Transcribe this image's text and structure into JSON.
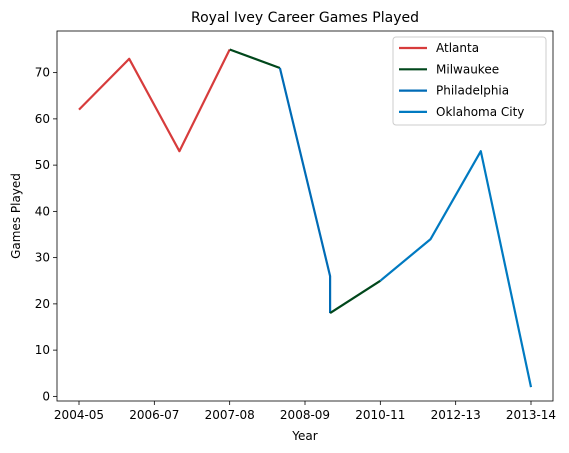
{
  "chart_data": {
    "type": "line",
    "title": "Royal Ivey Career Games Played",
    "xlabel": "Year",
    "ylabel": "Games Played",
    "categories": [
      "2004-05",
      "2005-06",
      "2006-07",
      "2007-08",
      "2008-09",
      "2009-10",
      "2009-10",
      "2010-11",
      "2011-12",
      "2012-13",
      "2013-14"
    ],
    "xtick_labels": [
      "2004-05",
      "2006-07",
      "2007-08",
      "2008-09",
      "2010-11",
      "2012-13",
      "2013-14"
    ],
    "ylim": [
      -1,
      79
    ],
    "yticks": [
      0,
      10,
      20,
      30,
      40,
      50,
      60,
      70
    ],
    "grid": false,
    "legend_position": "top-right",
    "series": [
      {
        "name": "Atlanta",
        "color": "#d73c3c",
        "points": [
          [
            "2004-05",
            62
          ],
          [
            "2005-06",
            73
          ],
          [
            "2006-07",
            53
          ],
          [
            "2007-08",
            75
          ]
        ]
      },
      {
        "name": "Milwaukee",
        "color": "#00471b",
        "points": [
          [
            "2007-08",
            75
          ],
          [
            "2008-09",
            71
          ]
        ]
      },
      {
        "name": "Philadelphia",
        "color": "#006bb6",
        "points": [
          [
            "2008-09",
            71
          ],
          [
            "2009-10",
            26
          ],
          [
            "2009-10",
            18
          ]
        ]
      },
      {
        "name": "Milwaukee",
        "color": "#00471b",
        "points": [
          [
            "2009-10",
            18
          ],
          [
            "2010-11",
            25
          ]
        ]
      },
      {
        "name": "Oklahoma City",
        "color": "#007ac1",
        "points": [
          [
            "2010-11",
            25
          ],
          [
            "2011-12",
            34
          ],
          [
            "2012-13",
            53
          ],
          [
            "2013-14",
            2
          ]
        ]
      }
    ],
    "legend": [
      {
        "name": "Atlanta",
        "color": "#d73c3c"
      },
      {
        "name": "Milwaukee",
        "color": "#00471b"
      },
      {
        "name": "Philadelphia",
        "color": "#006bb6"
      },
      {
        "name": "Oklahoma City",
        "color": "#007ac1"
      }
    ]
  }
}
